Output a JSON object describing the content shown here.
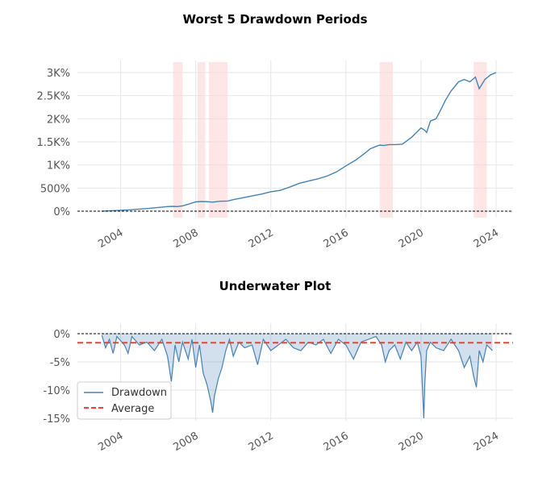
{
  "chart_data": [
    {
      "type": "line",
      "title": "Worst 5 Drawdown Periods",
      "xlabel": "",
      "ylabel": "",
      "xlim": [
        2001.7,
        2024.9
      ],
      "ylim": [
        -150,
        3150
      ],
      "y_ticks": [
        0,
        500,
        1000,
        1500,
        2000,
        2500,
        3000
      ],
      "y_tick_labels": [
        "0%",
        "500%",
        "1K%",
        "1.5K%",
        "2K%",
        "2.5K%",
        "3K%"
      ],
      "x_ticks": [
        2004,
        2008,
        2012,
        2016,
        2020,
        2024
      ],
      "x_tick_labels": [
        "2004",
        "2008",
        "2012",
        "2016",
        "2020",
        "2024"
      ],
      "grid": true,
      "zero_line": 0,
      "shaded_periods": [
        [
          2006.8,
          2007.3
        ],
        [
          2008.1,
          2008.5
        ],
        [
          2008.7,
          2009.7
        ],
        [
          2017.8,
          2018.5
        ],
        [
          2022.8,
          2023.5
        ]
      ],
      "x": [
        2003.0,
        2003.5,
        2004.0,
        2004.5,
        2005.0,
        2005.5,
        2006.0,
        2006.5,
        2006.8,
        2007.0,
        2007.3,
        2007.6,
        2008.0,
        2008.3,
        2008.6,
        2008.9,
        2009.3,
        2009.7,
        2010.0,
        2010.5,
        2011.0,
        2011.5,
        2012.0,
        2012.5,
        2013.0,
        2013.5,
        2014.0,
        2014.5,
        2015.0,
        2015.5,
        2016.0,
        2016.5,
        2017.0,
        2017.3,
        2017.6,
        2017.8,
        2018.0,
        2018.3,
        2018.6,
        2019.0,
        2019.5,
        2020.0,
        2020.2,
        2020.3,
        2020.5,
        2020.8,
        2021.0,
        2021.3,
        2021.6,
        2022.0,
        2022.3,
        2022.6,
        2022.9,
        2023.1,
        2023.4,
        2023.7,
        2024.0
      ],
      "series": [
        {
          "values": [
            0,
            10,
            20,
            30,
            45,
            60,
            80,
            100,
            105,
            100,
            115,
            150,
            200,
            210,
            205,
            195,
            215,
            220,
            250,
            290,
            330,
            370,
            420,
            450,
            520,
            600,
            650,
            700,
            760,
            850,
            980,
            1100,
            1250,
            1350,
            1400,
            1430,
            1420,
            1440,
            1440,
            1450,
            1600,
            1800,
            1750,
            1700,
            1950,
            2000,
            2150,
            2400,
            2600,
            2800,
            2850,
            2800,
            2900,
            2650,
            2850,
            2950,
            3000
          ],
          "color": "#4682b4"
        }
      ]
    },
    {
      "type": "area",
      "title": "Underwater Plot",
      "xlabel": "",
      "ylabel": "",
      "xlim": [
        2001.7,
        2024.9
      ],
      "ylim": [
        -15.2,
        0.8
      ],
      "y_ticks": [
        0,
        -5,
        -10,
        -15
      ],
      "y_tick_labels": [
        "0%",
        "-5%",
        "-10%",
        "-15%"
      ],
      "x_ticks": [
        2004,
        2008,
        2012,
        2016,
        2020,
        2024
      ],
      "x_tick_labels": [
        "2004",
        "2008",
        "2012",
        "2016",
        "2020",
        "2024"
      ],
      "grid": true,
      "zero_line": 0,
      "average": -1.6,
      "x": [
        2003.0,
        2003.2,
        2003.4,
        2003.6,
        2003.8,
        2004.2,
        2004.4,
        2004.6,
        2005.0,
        2005.4,
        2005.8,
        2006.2,
        2006.5,
        2006.7,
        2006.9,
        2007.1,
        2007.3,
        2007.6,
        2007.8,
        2008.0,
        2008.2,
        2008.4,
        2008.6,
        2008.8,
        2008.9,
        2009.0,
        2009.2,
        2009.4,
        2009.6,
        2009.8,
        2010.0,
        2010.3,
        2010.6,
        2011.0,
        2011.3,
        2011.6,
        2012.0,
        2012.4,
        2012.8,
        2013.2,
        2013.6,
        2014.0,
        2014.4,
        2014.8,
        2015.2,
        2015.6,
        2016.0,
        2016.4,
        2016.8,
        2017.2,
        2017.6,
        2017.9,
        2018.1,
        2018.3,
        2018.6,
        2018.9,
        2019.2,
        2019.5,
        2019.8,
        2020.0,
        2020.15,
        2020.2,
        2020.3,
        2020.5,
        2020.8,
        2021.2,
        2021.6,
        2022.0,
        2022.3,
        2022.6,
        2022.8,
        2022.95,
        2023.1,
        2023.3,
        2023.5,
        2023.8
      ],
      "series": [
        {
          "name": "Drawdown",
          "values": [
            -0.3,
            -2.5,
            -1.0,
            -3.5,
            -0.5,
            -2.0,
            -3.5,
            -0.5,
            -2.0,
            -1.5,
            -3.0,
            -1.0,
            -4.0,
            -8.5,
            -2.0,
            -5.0,
            -1.5,
            -4.5,
            -1.0,
            -6.0,
            -2.0,
            -7.0,
            -9.0,
            -12.0,
            -14.0,
            -11.0,
            -8.0,
            -6.0,
            -3.0,
            -1.0,
            -4.0,
            -1.5,
            -2.5,
            -2.0,
            -5.5,
            -1.0,
            -3.0,
            -2.0,
            -1.0,
            -2.5,
            -3.0,
            -1.5,
            -2.0,
            -1.0,
            -3.5,
            -1.0,
            -2.0,
            -4.5,
            -1.5,
            -1.0,
            -0.5,
            -2.0,
            -5.0,
            -3.0,
            -2.0,
            -4.5,
            -1.5,
            -3.0,
            -1.5,
            -4.0,
            -15.0,
            -9.0,
            -3.0,
            -1.5,
            -2.5,
            -3.0,
            -1.0,
            -3.0,
            -6.0,
            -4.0,
            -7.5,
            -9.5,
            -3.0,
            -5.0,
            -2.0,
            -3.0
          ],
          "color": "#4682b4"
        },
        {
          "name": "Average",
          "color": "#e8423a"
        }
      ],
      "legend_position": "lower-left"
    }
  ]
}
